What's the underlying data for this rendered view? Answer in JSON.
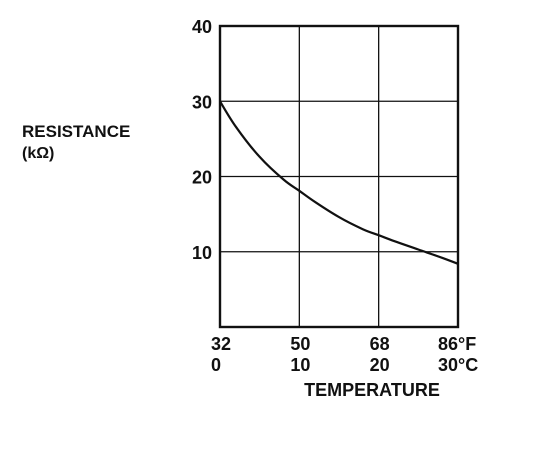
{
  "chart_data": {
    "type": "line",
    "ylabel_line1": "RESISTANCE",
    "ylabel_line2": "(kΩ)",
    "xlabel": "TEMPERATURE",
    "ylim": [
      0,
      40
    ],
    "xlim_c": [
      0,
      30
    ],
    "y_ticks": [
      "10",
      "20",
      "30",
      "40"
    ],
    "y_tick_values": [
      10,
      20,
      30,
      40
    ],
    "x_ticks_f": [
      "32",
      "50",
      "68",
      "86°F"
    ],
    "x_ticks_c": [
      "0",
      "10",
      "20",
      "30°C"
    ],
    "x_tick_values_c": [
      0,
      10,
      20,
      30
    ],
    "grid": true,
    "series": [
      {
        "x_c": [
          0,
          2,
          5,
          8,
          10,
          12,
          15,
          18,
          20,
          22,
          25,
          28,
          30
        ],
        "y": [
          30,
          26.6,
          22.6,
          19.6,
          18.1,
          16.6,
          14.6,
          13.0,
          12.2,
          11.4,
          10.3,
          9.2,
          8.4
        ]
      }
    ]
  }
}
